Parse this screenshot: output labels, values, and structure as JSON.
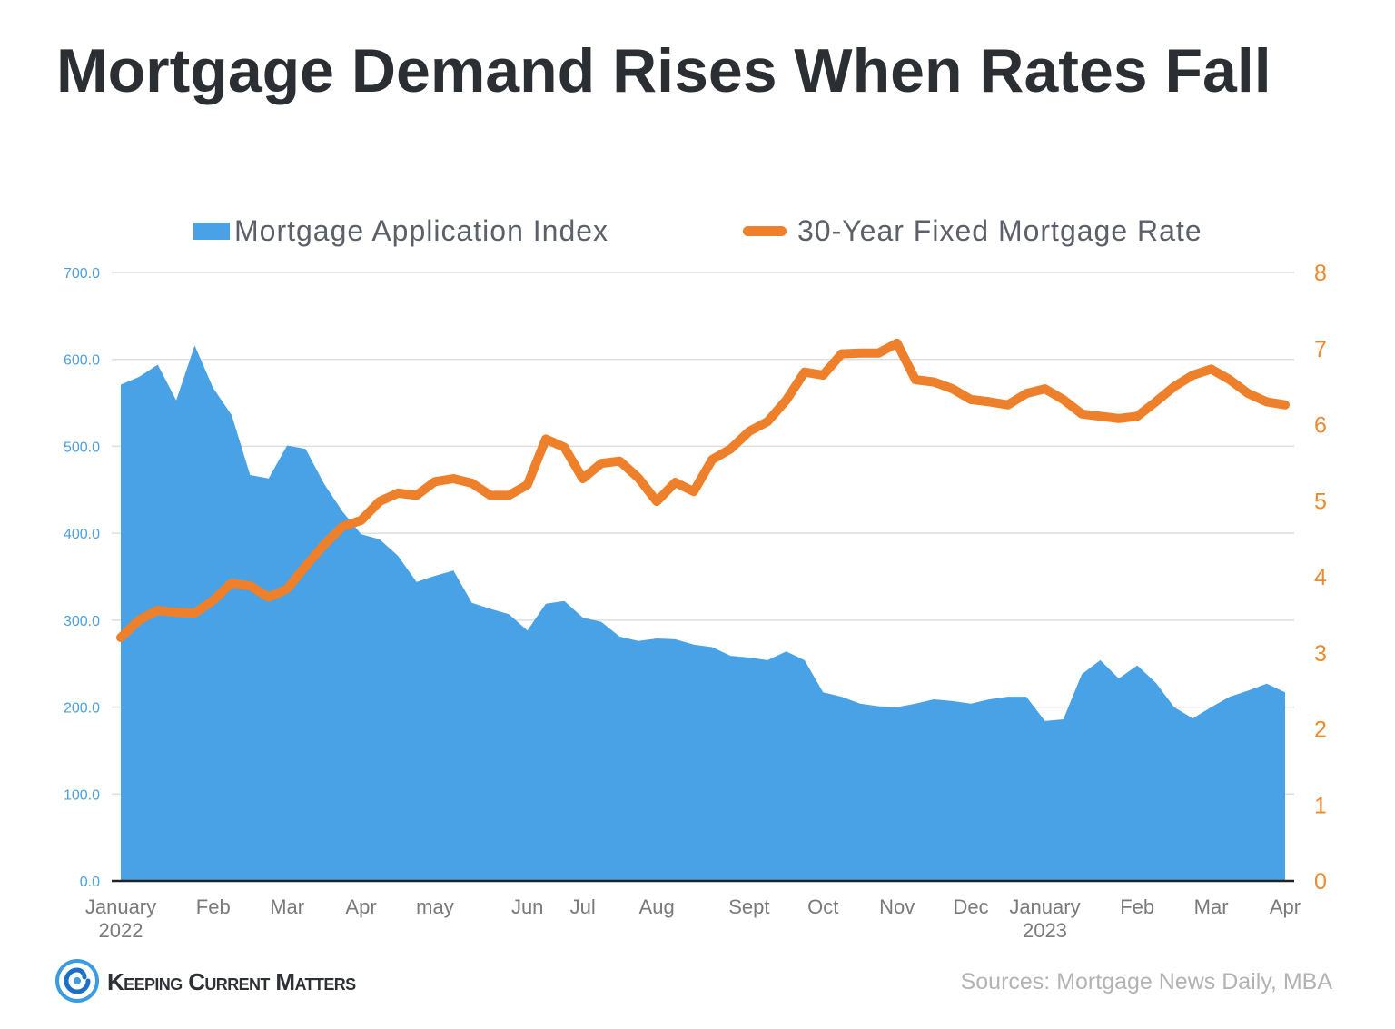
{
  "chart_data": {
    "type": "area",
    "title": "Mortgage Demand Rises When Rates Fall",
    "x": [
      "2022-01",
      "2022-01",
      "2022-01",
      "2022-01",
      "2022-01",
      "2022-02",
      "2022-02",
      "2022-02",
      "2022-02",
      "2022-03",
      "2022-03",
      "2022-03",
      "2022-03",
      "2022-04",
      "2022-04",
      "2022-04",
      "2022-04",
      "2022-05",
      "2022-05",
      "2022-05",
      "2022-05",
      "2022-05",
      "2022-06",
      "2022-06",
      "2022-06",
      "2022-07",
      "2022-07",
      "2022-07",
      "2022-07",
      "2022-08",
      "2022-08",
      "2022-08",
      "2022-08",
      "2022-08",
      "2022-09",
      "2022-09",
      "2022-09",
      "2022-09",
      "2022-10",
      "2022-10",
      "2022-10",
      "2022-10",
      "2022-11",
      "2022-11",
      "2022-11",
      "2022-11",
      "2022-12",
      "2022-12",
      "2022-12",
      "2022-12",
      "2023-01",
      "2023-01",
      "2023-01",
      "2023-01",
      "2023-01",
      "2023-02",
      "2023-02",
      "2023-02",
      "2023-02",
      "2023-03",
      "2023-03",
      "2023-03",
      "2023-03",
      "2023-04"
    ],
    "x_tick_labels": [
      {
        "label": "January",
        "year": "2022"
      },
      {
        "label": "Feb"
      },
      {
        "label": "Mar"
      },
      {
        "label": "Apr"
      },
      {
        "label": "may"
      },
      {
        "label": "Jun"
      },
      {
        "label": "Jul"
      },
      {
        "label": "Aug"
      },
      {
        "label": "Sept"
      },
      {
        "label": "Oct"
      },
      {
        "label": "Nov"
      },
      {
        "label": "Dec"
      },
      {
        "label": "January",
        "year": "2023"
      },
      {
        "label": "Feb"
      },
      {
        "label": "Mar"
      },
      {
        "label": "Apr"
      }
    ],
    "series": [
      {
        "name": "Mortgage Application Index",
        "type": "area",
        "axis": "left",
        "color": "#4aa2e6",
        "values": [
          571,
          580,
          594,
          553,
          616,
          567,
          536,
          467,
          463,
          501,
          497,
          457,
          425,
          399,
          393,
          374,
          344,
          351,
          357,
          320,
          313,
          307,
          288,
          319,
          322,
          303,
          298,
          281,
          276,
          279,
          278,
          272,
          269,
          259,
          257,
          254,
          264,
          254,
          217,
          212,
          204,
          201,
          200,
          204,
          209,
          207,
          204,
          209,
          212,
          212,
          184,
          186,
          238,
          254,
          233,
          248,
          228,
          200,
          187,
          200,
          212,
          219,
          227,
          217
        ]
      },
      {
        "name": "30-Year Fixed Mortgage Rate",
        "type": "line",
        "axis": "right",
        "color": "#ee7f2b",
        "values": [
          3.2,
          3.43,
          3.56,
          3.53,
          3.52,
          3.69,
          3.92,
          3.88,
          3.73,
          3.84,
          4.14,
          4.42,
          4.66,
          4.74,
          4.99,
          5.1,
          5.07,
          5.25,
          5.29,
          5.23,
          5.07,
          5.07,
          5.21,
          5.81,
          5.7,
          5.29,
          5.49,
          5.52,
          5.3,
          4.99,
          5.24,
          5.12,
          5.54,
          5.68,
          5.91,
          6.04,
          6.32,
          6.69,
          6.65,
          6.93,
          6.94,
          6.94,
          7.07,
          6.59,
          6.56,
          6.47,
          6.33,
          6.3,
          6.26,
          6.41,
          6.47,
          6.33,
          6.14,
          6.11,
          6.08,
          6.11,
          6.3,
          6.5,
          6.65,
          6.73,
          6.59,
          6.41,
          6.3,
          6.26
        ]
      }
    ],
    "y_left": {
      "ylim": [
        0,
        700
      ],
      "ticks": [
        "0.0",
        "100.0",
        "200.0",
        "300.0",
        "400.0",
        "500.0",
        "600.0",
        "700.0"
      ],
      "color": "#4a9fdf"
    },
    "y_right": {
      "ylim": [
        0,
        8
      ],
      "ticks": [
        "0",
        "1",
        "2",
        "3",
        "4",
        "5",
        "6",
        "7",
        "8"
      ],
      "color": "#f0892d"
    },
    "grid": true,
    "legend": "top-center"
  },
  "footer": {
    "brand": "Keeping Current Matters",
    "source": "Sources: Mortgage News Daily, MBA"
  }
}
